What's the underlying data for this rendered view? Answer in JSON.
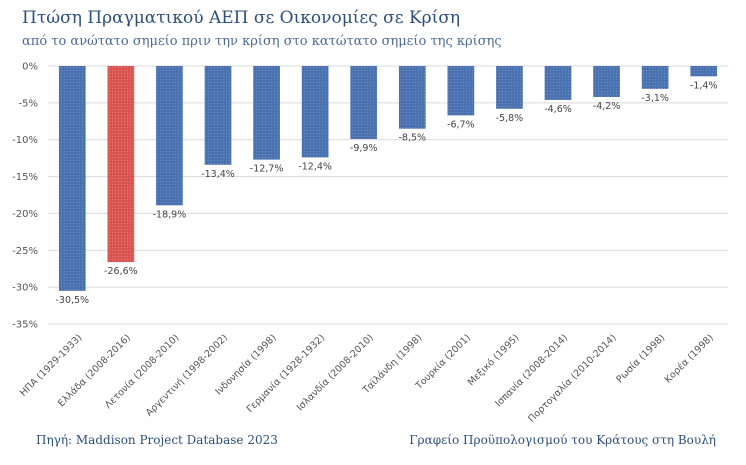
{
  "title": "Πτώση Πραγματικού ΑΕΠ σε Οικονομίες σε Κρίση",
  "subtitle": "από το ανώτατο σημείο πριν την κρίση στο κατώτατο σημείο της κρίσης",
  "footer": {
    "source_label": "Πηγή:",
    "source_text": "Maddison Project Database 2023",
    "publisher": "Γραφείο Προϋπολογισμού του Κράτους στη Βουλή"
  },
  "colors": {
    "bar": "#4a72b0",
    "highlight": "#d9534f",
    "grid": "#d9d9d9",
    "text": "#555555"
  },
  "chart_data": {
    "type": "bar",
    "categories": [
      "ΗΠΑ (1929-1933)",
      "Ελλάδα (2008-2016)",
      "Λετονία (2008-2010)",
      "Αργεντινή (1998-2002)",
      "Ινδονησία (1998)",
      "Γερμανία (1928-1932)",
      "Ισλανδία (2008-2010)",
      "Ταϊλάνδη (1998)",
      "Τουρκία (2001)",
      "Μεξικό (1995)",
      "Ισπανία (2008-2014)",
      "Πορτογαλία (2010-2014)",
      "Ρωσία (1998)",
      "Κορέα (1998)"
    ],
    "values": [
      -30.5,
      -26.6,
      -18.9,
      -13.4,
      -12.7,
      -12.4,
      -9.9,
      -8.5,
      -6.7,
      -5.8,
      -4.6,
      -4.2,
      -3.1,
      -1.4
    ],
    "data_labels": [
      "-30,5%",
      "-26,6%",
      "-18,9%",
      "-13,4%",
      "-12,7%",
      "-12,4%",
      "-9,9%",
      "-8,5%",
      "-6,7%",
      "-5,8%",
      "-4,6%",
      "-4,2%",
      "-3,1%",
      "-1,4%"
    ],
    "highlight_index": 1,
    "yticks": [
      0,
      -5,
      -10,
      -15,
      -20,
      -25,
      -30,
      -35
    ],
    "ytick_labels": [
      "0%",
      "-5%",
      "-10%",
      "-15%",
      "-20%",
      "-25%",
      "-30%",
      "-35%"
    ],
    "ylim": [
      -35,
      0
    ],
    "grid": true,
    "legend": "none"
  }
}
